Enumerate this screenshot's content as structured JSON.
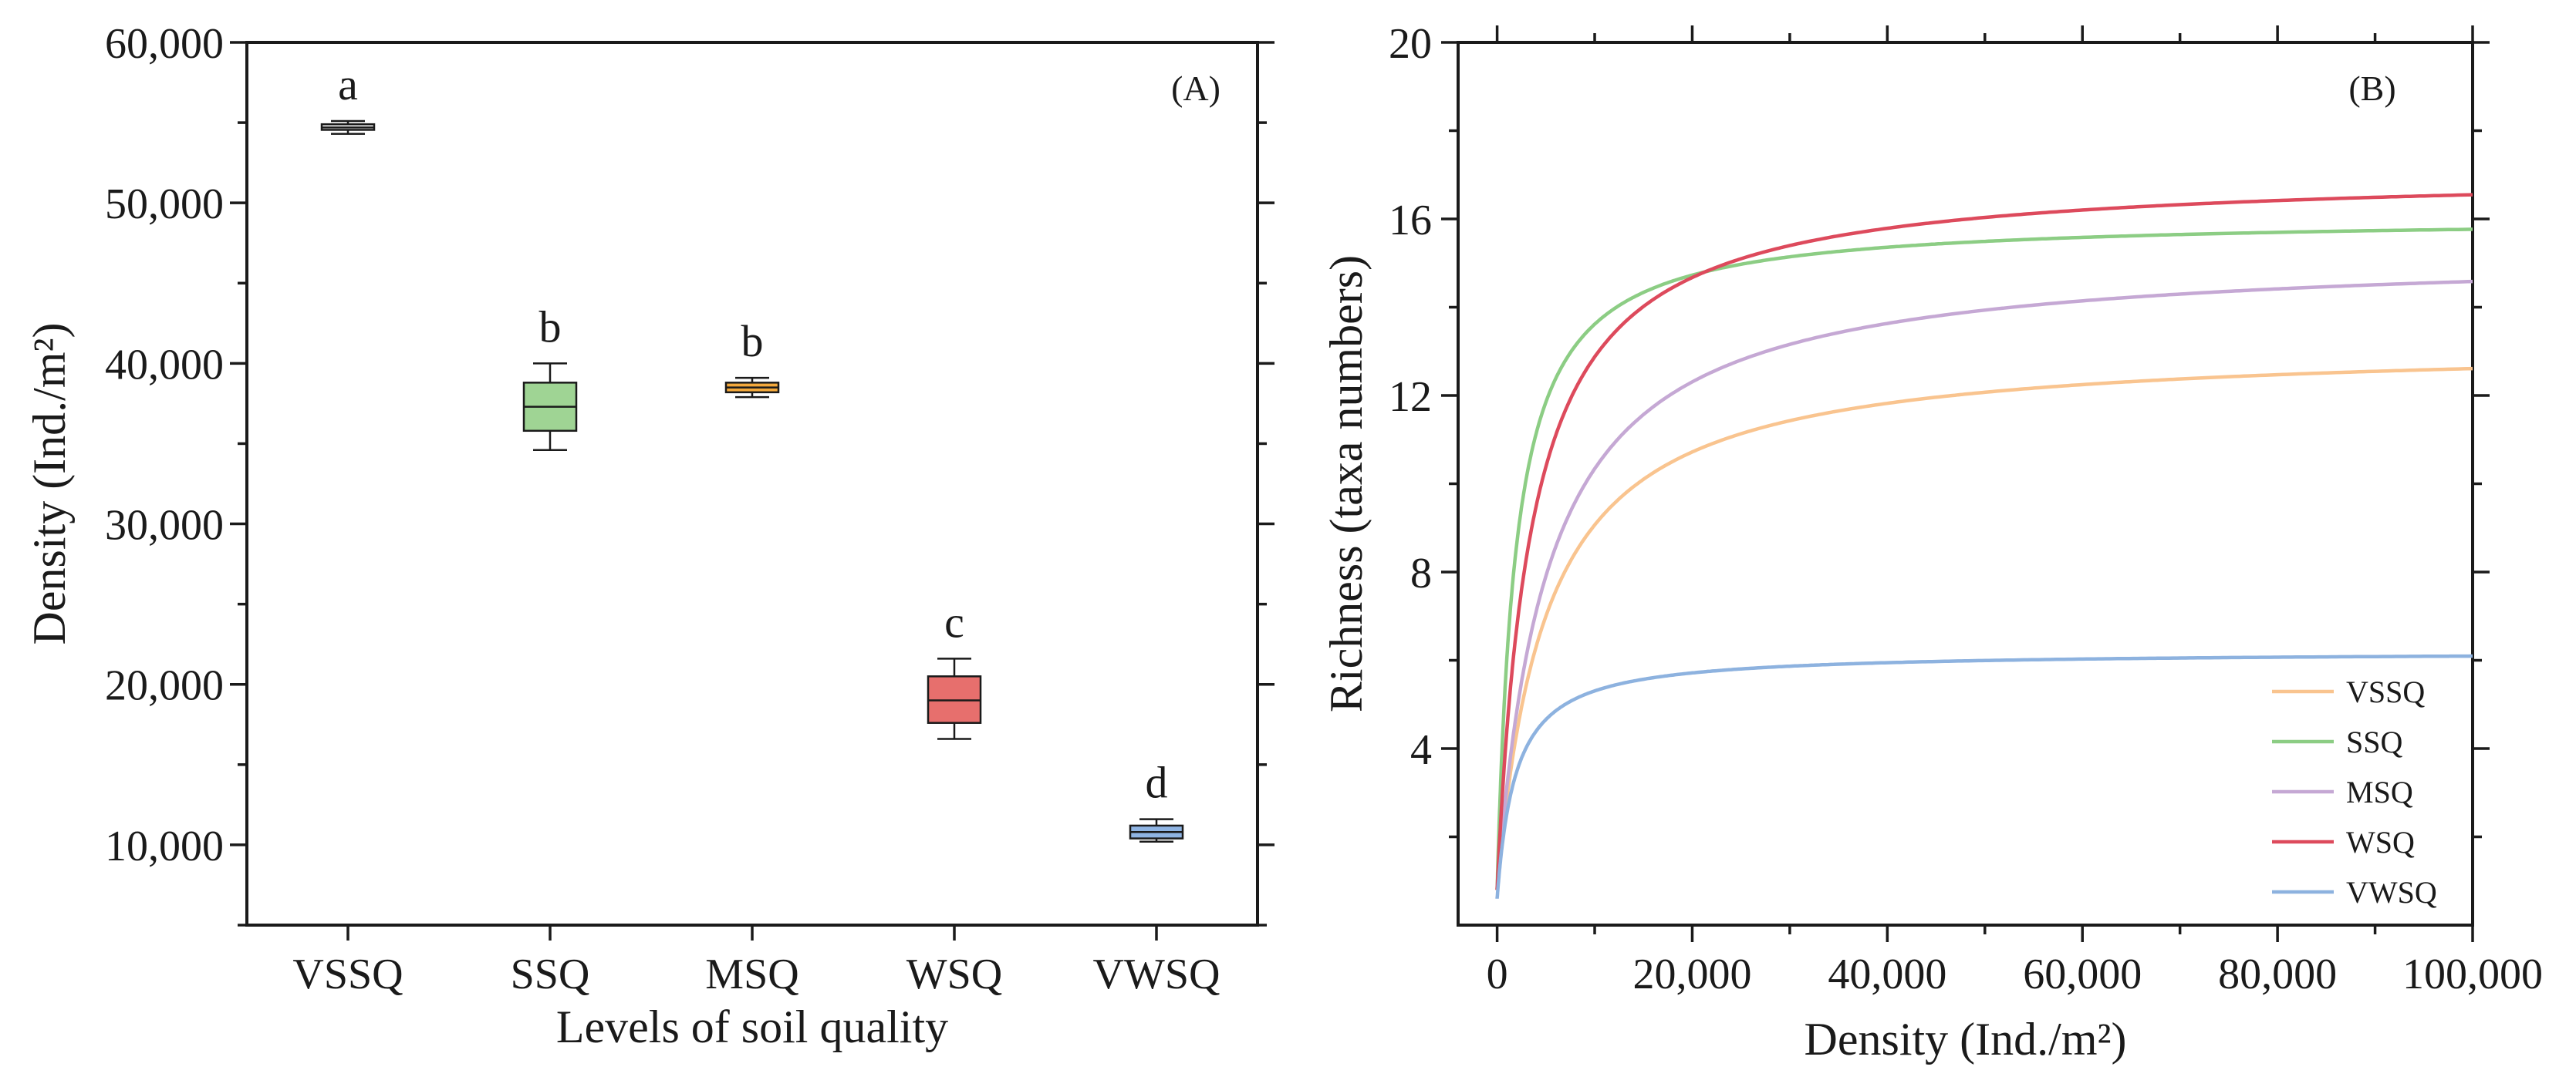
{
  "chart_data": [
    {
      "type": "box",
      "panel_label": "(A)",
      "xlabel": "Levels of soil quality",
      "ylabel": "Density (Ind./m²)",
      "ylim": [
        5000,
        60000
      ],
      "yticks": [
        10000,
        20000,
        30000,
        40000,
        50000,
        60000
      ],
      "ytick_labels": [
        "10,000",
        "20,000",
        "30,000",
        "40,000",
        "50,000",
        "60,000"
      ],
      "categories": [
        "VSSQ",
        "SSQ",
        "MSQ",
        "WSQ",
        "VWSQ"
      ],
      "boxes": [
        {
          "category": "VSSQ",
          "min": 54300,
          "q1": 54550,
          "median": 54700,
          "q3": 54900,
          "max": 55100,
          "letter": "a",
          "color": "#ececec"
        },
        {
          "category": "SSQ",
          "min": 34600,
          "q1": 35800,
          "median": 37300,
          "q3": 38800,
          "max": 40000,
          "letter": "b",
          "color": "#9fd494"
        },
        {
          "category": "MSQ",
          "min": 37900,
          "q1": 38200,
          "median": 38500,
          "q3": 38800,
          "max": 39100,
          "letter": "b",
          "color": "#f4a93c"
        },
        {
          "category": "WSQ",
          "min": 16600,
          "q1": 17600,
          "median": 19000,
          "q3": 20500,
          "max": 21600,
          "letter": "c",
          "color": "#e76f6d"
        },
        {
          "category": "VWSQ",
          "min": 10200,
          "q1": 10400,
          "median": 10800,
          "q3": 11200,
          "max": 11600,
          "letter": "d",
          "color": "#8fb4e3"
        }
      ]
    },
    {
      "type": "line",
      "panel_label": "(B)",
      "xlabel": "Density (Ind./m²)",
      "ylabel": "Richness (taxa numbers)",
      "xlim": [
        -4000,
        100000
      ],
      "ylim": [
        0,
        20
      ],
      "xticks": [
        0,
        20000,
        40000,
        60000,
        80000,
        100000
      ],
      "xtick_labels": [
        "0",
        "20,000",
        "40,000",
        "60,000",
        "80,000",
        "100,000"
      ],
      "yticks": [
        4,
        8,
        12,
        16,
        20
      ],
      "ytick_labels": [
        "4",
        "8",
        "12",
        "16",
        "20"
      ],
      "legend_position": "bottom-right",
      "series": [
        {
          "name": "VSSQ",
          "color": "#f9c48f",
          "asymptote": 13.2,
          "half_sat": 5000,
          "start": 0.8
        },
        {
          "name": "SSQ",
          "color": "#8ccd84",
          "asymptote": 16.05,
          "half_sat": 1900,
          "start": 0.8
        },
        {
          "name": "MSQ",
          "color": "#c5a8d4",
          "asymptote": 15.3,
          "half_sat": 5200,
          "start": 0.8
        },
        {
          "name": "WSQ",
          "color": "#dd4a5c",
          "asymptote": 17.1,
          "half_sat": 3500,
          "start": 0.8
        },
        {
          "name": "VWSQ",
          "color": "#8db2df",
          "asymptote": 6.2,
          "half_sat": 1900,
          "start": 0.6
        }
      ]
    }
  ]
}
